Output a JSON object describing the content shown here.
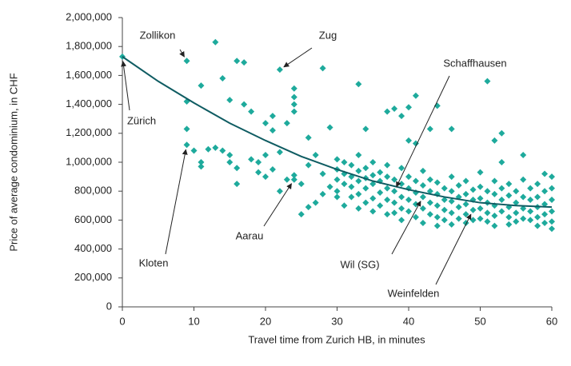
{
  "chart_data": {
    "type": "scatter",
    "xlabel": "Travel time from Zurich HB, in minutes",
    "ylabel": "Price of average condominium, in CHF",
    "xlim": [
      0,
      60
    ],
    "xticks": [
      0,
      10,
      20,
      30,
      40,
      50,
      60
    ],
    "ylim": [
      0,
      2000000
    ],
    "yticks": [
      {
        "value": 0,
        "label": "0"
      },
      {
        "value": 200000,
        "label": "200,000"
      },
      {
        "value": 400000,
        "label": "400,000"
      },
      {
        "value": 600000,
        "label": "600,000"
      },
      {
        "value": 800000,
        "label": "800,000"
      },
      {
        "value": 1000000,
        "label": "1,000,000"
      },
      {
        "value": 1200000,
        "label": "1,200,000"
      },
      {
        "value": 1400000,
        "label": "1,400,000"
      },
      {
        "value": 1600000,
        "label": "1,600,000"
      },
      {
        "value": 1800000,
        "label": "1,800,000"
      },
      {
        "value": 2000000,
        "label": "2,000,000"
      }
    ],
    "grid": false,
    "series": [
      {
        "color": "#1eaa9c",
        "x": [
          0,
          9,
          13,
          22,
          9,
          9,
          9,
          11,
          14,
          16,
          17,
          28,
          33,
          24,
          24,
          24,
          24,
          17,
          18,
          21,
          21,
          23,
          15,
          20,
          37,
          38,
          41,
          40,
          39,
          44,
          51,
          53,
          52,
          46,
          43,
          40,
          41,
          34,
          29,
          26,
          10,
          11,
          11,
          12,
          13,
          14,
          15,
          15,
          16,
          16,
          18,
          19,
          19,
          20,
          20,
          21,
          22,
          22,
          23,
          24,
          24,
          25,
          26,
          27,
          25,
          26,
          27,
          28,
          29,
          28,
          30,
          30,
          30,
          30,
          30,
          31,
          31,
          31,
          31,
          32,
          32,
          32,
          32,
          33,
          33,
          33,
          33,
          33,
          34,
          34,
          34,
          34,
          35,
          35,
          35,
          35,
          35,
          36,
          36,
          36,
          36,
          37,
          37,
          37,
          37,
          37,
          38,
          38,
          38,
          38,
          39,
          39,
          39,
          39,
          39,
          40,
          40,
          40,
          40,
          41,
          41,
          41,
          41,
          42,
          42,
          42,
          42,
          42,
          43,
          43,
          43,
          43,
          44,
          44,
          44,
          44,
          44,
          45,
          45,
          45,
          45,
          46,
          46,
          46,
          46,
          46,
          47,
          47,
          47,
          47,
          48,
          48,
          48,
          48,
          48,
          49,
          49,
          49,
          49,
          50,
          50,
          50,
          50,
          50,
          51,
          51,
          51,
          51,
          52,
          52,
          52,
          52,
          52,
          53,
          53,
          53,
          53,
          54,
          54,
          54,
          54,
          54,
          55,
          55,
          55,
          55,
          56,
          56,
          56,
          56,
          56,
          57,
          57,
          57,
          57,
          58,
          58,
          58,
          58,
          58,
          59,
          59,
          59,
          59,
          59,
          60,
          60,
          60,
          60,
          60,
          60
        ],
        "values": [
          1730000,
          1700000,
          1830000,
          1640000,
          1420000,
          1230000,
          1120000,
          1530000,
          1580000,
          1700000,
          1690000,
          1650000,
          1540000,
          1510000,
          1450000,
          1400000,
          1350000,
          1400000,
          1350000,
          1320000,
          1220000,
          1270000,
          1430000,
          1270000,
          1350000,
          1370000,
          1460000,
          1380000,
          1320000,
          1390000,
          1560000,
          1200000,
          1150000,
          1230000,
          1230000,
          1150000,
          1130000,
          1230000,
          1240000,
          1170000,
          1080000,
          1000000,
          970000,
          1090000,
          1100000,
          1080000,
          1050000,
          1000000,
          960000,
          850000,
          1020000,
          1000000,
          930000,
          1050000,
          900000,
          950000,
          1070000,
          800000,
          880000,
          910000,
          880000,
          640000,
          690000,
          720000,
          850000,
          980000,
          1050000,
          780000,
          830000,
          920000,
          1020000,
          950000,
          880000,
          800000,
          760000,
          1000000,
          920000,
          850000,
          700000,
          980000,
          900000,
          830000,
          760000,
          1050000,
          940000,
          870000,
          780000,
          680000,
          960000,
          890000,
          820000,
          720000,
          1000000,
          910000,
          850000,
          750000,
          660000,
          930000,
          870000,
          790000,
          700000,
          980000,
          900000,
          820000,
          740000,
          640000,
          880000,
          800000,
          720000,
          650000,
          960000,
          850000,
          760000,
          680000,
          600000,
          900000,
          820000,
          740000,
          660000,
          870000,
          790000,
          710000,
          620000,
          940000,
          840000,
          760000,
          680000,
          580000,
          880000,
          800000,
          720000,
          640000,
          860000,
          780000,
          700000,
          620000,
          560000,
          820000,
          740000,
          670000,
          600000,
          900000,
          800000,
          730000,
          650000,
          570000,
          840000,
          760000,
          690000,
          610000,
          870000,
          780000,
          710000,
          640000,
          580000,
          810000,
          740000,
          670000,
          600000,
          930000,
          830000,
          750000,
          680000,
          610000,
          800000,
          720000,
          650000,
          590000,
          870000,
          780000,
          700000,
          630000,
          560000,
          1000000,
          820000,
          740000,
          660000,
          850000,
          770000,
          690000,
          620000,
          570000,
          800000,
          720000,
          650000,
          590000,
          1050000,
          880000,
          760000,
          680000,
          610000,
          820000,
          740000,
          660000,
          600000,
          850000,
          760000,
          690000,
          620000,
          560000,
          920000,
          800000,
          710000,
          640000,
          580000,
          900000,
          820000,
          740000,
          660000,
          590000,
          540000
        ]
      },
      {
        "type": "line",
        "color": "#0f5c62",
        "x": [
          0,
          5,
          10,
          15,
          20,
          25,
          30,
          35,
          40,
          45,
          50,
          55,
          60
        ],
        "values": [
          1730000,
          1560000,
          1410000,
          1270000,
          1150000,
          1040000,
          950000,
          870000,
          810000,
          760000,
          720000,
          700000,
          690000
        ]
      }
    ],
    "annotations": [
      {
        "text": "Zollikon",
        "x": 9,
        "y": 1700000
      },
      {
        "text": "Zug",
        "x": 22,
        "y": 1640000
      },
      {
        "text": "Zürich",
        "x": 0,
        "y": 1730000
      },
      {
        "text": "Kloten",
        "x": 9,
        "y": 1120000
      },
      {
        "text": "Aarau",
        "x": 24,
        "y": 880000
      },
      {
        "text": "Schaffhausen",
        "x": 38,
        "y": 800000
      },
      {
        "text": "Wil (SG)",
        "x": 42,
        "y": 760000
      },
      {
        "text": "Weinfelden",
        "x": 49,
        "y": 670000
      }
    ]
  }
}
